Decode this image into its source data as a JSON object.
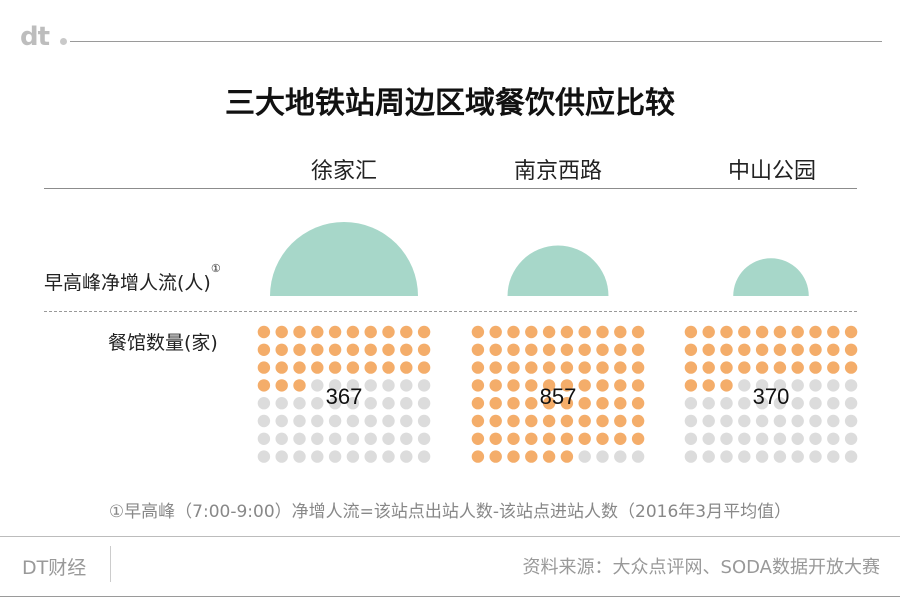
{
  "logo": "dt",
  "title": "三大地铁站周边区域餐饮供应比较",
  "row_labels": {
    "flow": "早高峰净增人流(人)",
    "flow_note_marker": "①",
    "restaurants": "餐馆数量(家)"
  },
  "footnote": "①早高峰（7:00-9:00）净增人流=该站点出站人数-该站点进站人数（2016年3月平均值）",
  "brand": "DT财经",
  "source": "资料来源：大众点评网、SODA数据开放大赛",
  "colors": {
    "semicircle": "#a7d7c9",
    "dot_filled": "#f4ad6a",
    "dot_empty": "#dcdcdc"
  },
  "chart_data": {
    "type": "other",
    "categories": [
      "徐家汇",
      "南京西路",
      "中山公园"
    ],
    "series": [
      {
        "name": "早高峰净增人流(人)",
        "values": [
          2.15,
          1.0,
          0.56
        ]
      },
      {
        "name": "餐馆数量(家)",
        "values": [
          367,
          857,
          370
        ]
      }
    ],
    "notes": "Morning-peak net inflow is shown only as semicircle size (no numeric labels; values are relative, 南京西路 = 1). Restaurant counts are labeled; each dot grid has 100 dots (10×8 orange-capable grid, filled proportionally to count / 900)."
  }
}
